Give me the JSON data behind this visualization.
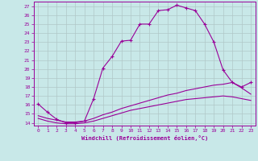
{
  "xlabel": "Windchill (Refroidissement éolien,°C)",
  "xlim": [
    -0.5,
    23.5
  ],
  "ylim": [
    13.7,
    27.5
  ],
  "xticks": [
    0,
    1,
    2,
    3,
    4,
    5,
    6,
    7,
    8,
    9,
    10,
    11,
    12,
    13,
    14,
    15,
    16,
    17,
    18,
    19,
    20,
    21,
    22,
    23
  ],
  "yticks": [
    14,
    15,
    16,
    17,
    18,
    19,
    20,
    21,
    22,
    23,
    24,
    25,
    26,
    27
  ],
  "line_color": "#990099",
  "bg_color": "#c8e8e8",
  "grid_color": "#b0c8c8",
  "curve1_x": [
    0,
    1,
    2,
    3,
    4,
    5,
    6,
    7,
    8,
    9,
    10,
    11,
    12,
    13,
    14,
    15,
    16,
    17,
    18,
    19,
    20,
    21,
    22,
    23
  ],
  "curve1_y": [
    16.1,
    15.2,
    14.4,
    14.0,
    14.0,
    14.2,
    16.7,
    20.1,
    21.4,
    23.1,
    23.2,
    25.0,
    25.0,
    26.5,
    26.6,
    27.1,
    26.8,
    26.5,
    25.0,
    23.0,
    19.9,
    18.5,
    18.0,
    18.5
  ],
  "curve2_x": [
    0,
    1,
    2,
    3,
    4,
    5,
    6,
    7,
    8,
    9,
    10,
    11,
    12,
    13,
    14,
    15,
    16,
    17,
    18,
    19,
    20,
    21,
    22,
    23
  ],
  "curve2_y": [
    14.8,
    14.5,
    14.3,
    14.1,
    14.1,
    14.2,
    14.5,
    14.9,
    15.2,
    15.6,
    15.9,
    16.2,
    16.5,
    16.8,
    17.1,
    17.3,
    17.6,
    17.8,
    18.0,
    18.2,
    18.3,
    18.5,
    17.9,
    17.2
  ],
  "curve3_x": [
    0,
    1,
    2,
    3,
    4,
    5,
    6,
    7,
    8,
    9,
    10,
    11,
    12,
    13,
    14,
    15,
    16,
    17,
    18,
    19,
    20,
    21,
    22,
    23
  ],
  "curve3_y": [
    14.5,
    14.2,
    14.0,
    13.9,
    13.9,
    14.0,
    14.2,
    14.5,
    14.8,
    15.1,
    15.4,
    15.6,
    15.8,
    16.0,
    16.2,
    16.4,
    16.6,
    16.7,
    16.8,
    16.9,
    17.0,
    16.9,
    16.7,
    16.5
  ]
}
